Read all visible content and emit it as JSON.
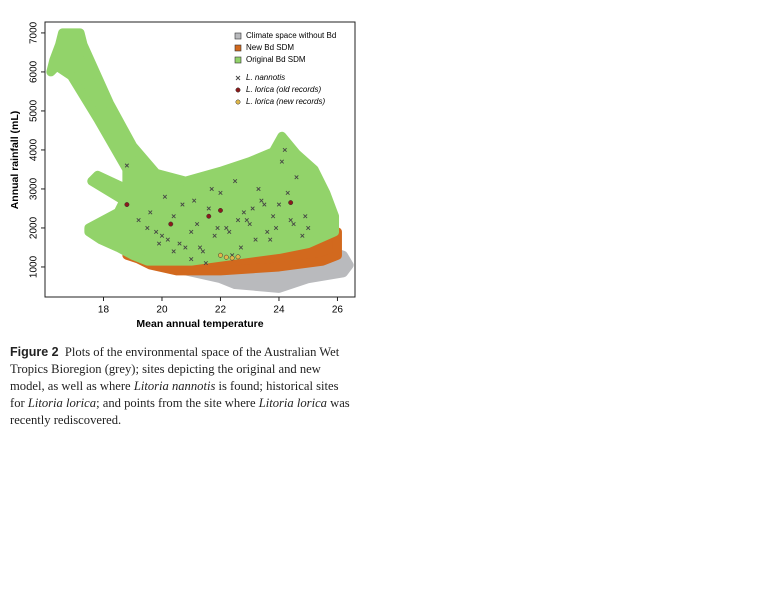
{
  "chart_data": {
    "type": "scatter",
    "xlabel": "Mean annual temperature",
    "ylabel": "Annual rainfall (mL)",
    "xlim": [
      16,
      26.6
    ],
    "ylim": [
      230,
      7280
    ],
    "xticks": [
      18,
      20,
      22,
      24,
      26
    ],
    "yticks": [
      1000,
      2000,
      3000,
      4000,
      5000,
      6000,
      7000
    ],
    "regions": [
      {
        "name": "Climate space without Bd",
        "color": "#b9babd",
        "x": [
          20.5,
          22,
          22.5,
          24,
          25,
          26.2,
          26.4,
          26.2,
          25.8,
          25,
          23,
          21
        ],
        "y": [
          950,
          700,
          550,
          450,
          700,
          850,
          1050,
          1300,
          1400,
          1200,
          1000,
          950
        ]
      },
      {
        "name": "New Bd SDM",
        "color": "#d2691e",
        "x": [
          18.8,
          19.5,
          21,
          23,
          25.9,
          26,
          26,
          25.5,
          24,
          22,
          20.5,
          19.6,
          19.2
        ],
        "y": [
          1300,
          1150,
          1150,
          1300,
          1800,
          1900,
          1300,
          1150,
          1000,
          900,
          900,
          1050,
          1200
        ]
      },
      {
        "name": "Original Bd SDM",
        "color": "#92d36a",
        "x": [
          16.6,
          17.2,
          17.3,
          18.2,
          19.0,
          19.8,
          20.8,
          22,
          23,
          23.8,
          24.1,
          24.6,
          25.2,
          25.6,
          25.9,
          25.9,
          25,
          24,
          23,
          22,
          21,
          19.5,
          19,
          18.5,
          17.9,
          17.5,
          17.5,
          18.5,
          18.7,
          17.6,
          17.8,
          18.8,
          18.8,
          17.8,
          16.9,
          16.4,
          16.2,
          16.3,
          16.5
        ],
        "y": [
          7000,
          7000,
          6700,
          5200,
          4100,
          3400,
          3200,
          3450,
          3700,
          3950,
          4350,
          3900,
          3500,
          2900,
          2300,
          1900,
          1600,
          1450,
          1350,
          1250,
          1150,
          1150,
          1300,
          1500,
          1700,
          1900,
          2000,
          2400,
          2700,
          3200,
          3350,
          3000,
          3500,
          4800,
          5900,
          6150,
          6000,
          6300,
          6700
        ]
      }
    ],
    "series": [
      {
        "name": "L. nannotis",
        "color": "#444444",
        "marker": "x",
        "x": [
          18.8,
          19.2,
          19.5,
          19.8,
          20.0,
          20.2,
          20.4,
          20.6,
          20.8,
          21.0,
          21.2,
          21.4,
          21.6,
          21.8,
          22.0,
          22.2,
          22.4,
          22.6,
          22.8,
          23.0,
          23.2,
          23.4,
          23.6,
          23.8,
          24.0,
          24.2,
          24.4,
          24.6,
          24.8,
          25.0,
          19.6,
          20.1,
          20.7,
          21.3,
          21.9,
          22.5,
          23.1,
          23.7,
          24.3,
          24.9,
          20.4,
          21.1,
          21.7,
          22.3,
          22.9,
          23.5,
          24.1,
          19.9,
          21.5,
          22.7,
          23.3,
          24.5,
          21.0,
          23.9
        ],
        "y": [
          3600,
          2200,
          2000,
          1900,
          1800,
          1700,
          2300,
          1600,
          1500,
          1900,
          2100,
          1400,
          2500,
          1800,
          2900,
          2000,
          1300,
          2200,
          2400,
          2100,
          1700,
          2700,
          1900,
          2300,
          2600,
          4000,
          2200,
          3300,
          1800,
          2000,
          2400,
          2800,
          2600,
          1500,
          2000,
          3200,
          2500,
          1700,
          2900,
          2300,
          1400,
          2700,
          3000,
          1900,
          2200,
          2600,
          3700,
          1600,
          1100,
          1500,
          3000,
          2100,
          1200,
          2000
        ]
      },
      {
        "name": "L. lorica (old records)",
        "color": "#8b1a1a",
        "marker": "circle",
        "x": [
          18.8,
          21.6,
          22,
          24.4,
          20.3
        ],
        "y": [
          2600,
          2300,
          2450,
          2650,
          2100
        ]
      },
      {
        "name": "L. lorica (new records)",
        "color": "#e0b84a",
        "marker": "circle",
        "x": [
          22.2,
          22.4,
          22.6,
          22
        ],
        "y": [
          1250,
          1230,
          1260,
          1300
        ]
      }
    ]
  },
  "caption": {
    "label": "Figure 2",
    "parts": [
      "Plots of the environmental space of the Australian Wet Tropics Bioregion (grey); sites depicting the original and new model, as well as where",
      "Litoria nannotis",
      "is found; historical sites for",
      "Litoria lorica",
      ";",
      "and points from the site where",
      "Litoria lorica",
      "was recently rediscovered."
    ]
  }
}
